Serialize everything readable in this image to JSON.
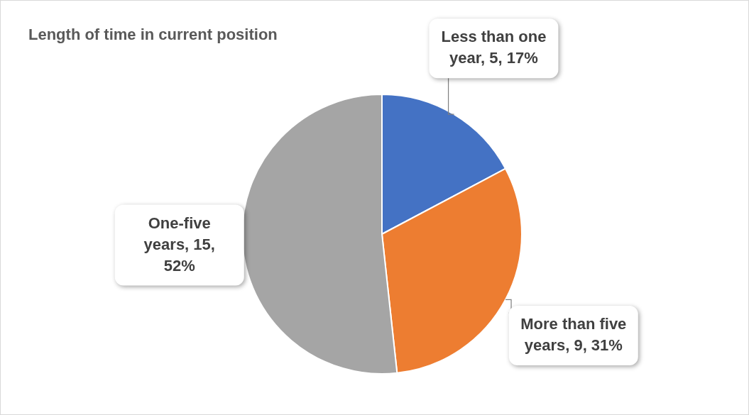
{
  "chart_data": {
    "type": "pie",
    "title": "Length of time in current position",
    "categories": [
      "Less than one year",
      "More than five years",
      "One-five years"
    ],
    "values": [
      5,
      9,
      15
    ],
    "colors": [
      "#4472c4",
      "#ed7d31",
      "#a5a5a5"
    ],
    "value_labels": [
      "5, 17%",
      "9, 31%",
      "15, 52%"
    ],
    "legend": false
  }
}
